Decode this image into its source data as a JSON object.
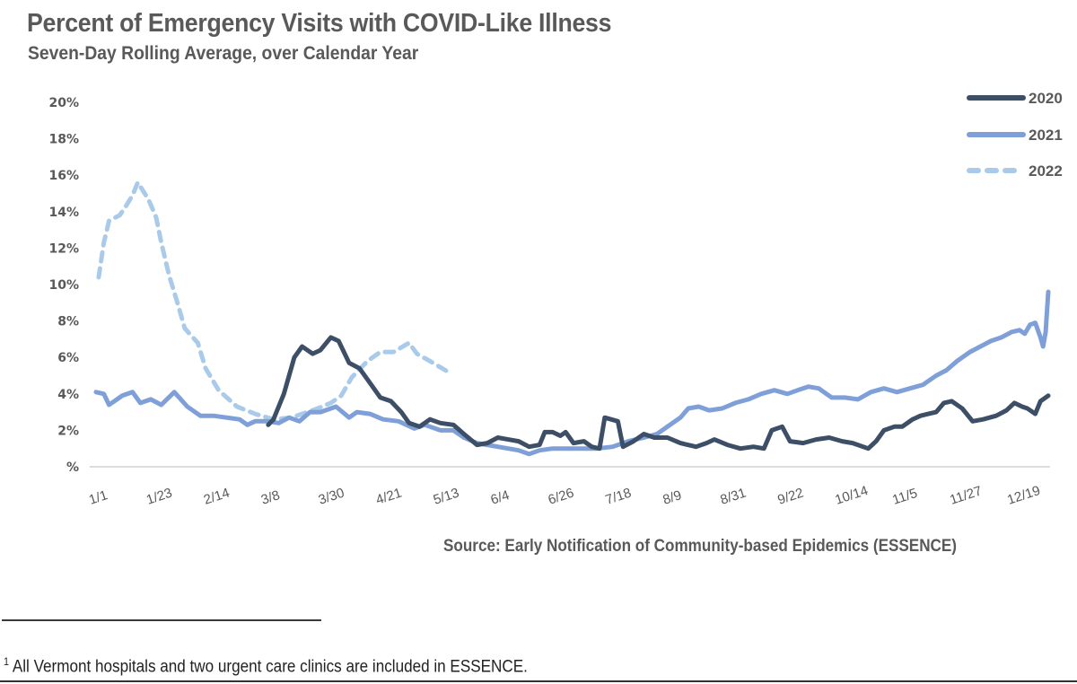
{
  "chart_data": {
    "type": "line",
    "title": "Percent of Emergency Visits with COVID-Like Illness",
    "subtitle": "Seven-Day Rolling Average, over Calendar Year",
    "xlabel": "",
    "ylabel": "",
    "x_unit": "day of year",
    "xlim": [
      0,
      365
    ],
    "ylim": [
      0,
      20
    ],
    "grid": false,
    "legend_position": "top-right",
    "y_ticks": [
      {
        "value": 20,
        "label": "20%"
      },
      {
        "value": 18,
        "label": "18%"
      },
      {
        "value": 16,
        "label": "16%"
      },
      {
        "value": 14,
        "label": "14%"
      },
      {
        "value": 12,
        "label": "12%"
      },
      {
        "value": 10,
        "label": "10%"
      },
      {
        "value": 8,
        "label": "8%"
      },
      {
        "value": 6,
        "label": "6%"
      },
      {
        "value": 4,
        "label": "4%"
      },
      {
        "value": 2,
        "label": "2%"
      },
      {
        "value": 0,
        "label": "%"
      }
    ],
    "x_ticks": [
      {
        "day": 0,
        "label": "1/1"
      },
      {
        "day": 22,
        "label": "1/23"
      },
      {
        "day": 44,
        "label": "2/14"
      },
      {
        "day": 66,
        "label": "3/8"
      },
      {
        "day": 88,
        "label": "3/30"
      },
      {
        "day": 110,
        "label": "4/21"
      },
      {
        "day": 132,
        "label": "5/13"
      },
      {
        "day": 154,
        "label": "6/4"
      },
      {
        "day": 176,
        "label": "6/26"
      },
      {
        "day": 198,
        "label": "7/18"
      },
      {
        "day": 220,
        "label": "8/9"
      },
      {
        "day": 242,
        "label": "8/31"
      },
      {
        "day": 264,
        "label": "9/22"
      },
      {
        "day": 286,
        "label": "10/14"
      },
      {
        "day": 308,
        "label": "11/5"
      },
      {
        "day": 330,
        "label": "11/27"
      },
      {
        "day": 352,
        "label": "12/19"
      }
    ],
    "series": [
      {
        "name": "2020",
        "color": "#3d4f66",
        "style": "solid-thick",
        "points": [
          [
            66,
            2.3
          ],
          [
            68,
            2.6
          ],
          [
            72,
            4.0
          ],
          [
            76,
            6.0
          ],
          [
            79,
            6.6
          ],
          [
            83,
            6.2
          ],
          [
            86,
            6.4
          ],
          [
            90,
            7.1
          ],
          [
            93,
            6.9
          ],
          [
            97,
            5.7
          ],
          [
            101,
            5.4
          ],
          [
            105,
            4.6
          ],
          [
            109,
            3.8
          ],
          [
            113,
            3.6
          ],
          [
            117,
            3.0
          ],
          [
            120,
            2.4
          ],
          [
            124,
            2.2
          ],
          [
            128,
            2.6
          ],
          [
            132,
            2.4
          ],
          [
            137,
            2.3
          ],
          [
            141,
            1.8
          ],
          [
            146,
            1.2
          ],
          [
            150,
            1.3
          ],
          [
            154,
            1.6
          ],
          [
            158,
            1.5
          ],
          [
            162,
            1.4
          ],
          [
            166,
            1.1
          ],
          [
            170,
            1.2
          ],
          [
            172,
            1.9
          ],
          [
            175,
            1.9
          ],
          [
            178,
            1.7
          ],
          [
            180,
            1.9
          ],
          [
            183,
            1.3
          ],
          [
            187,
            1.4
          ],
          [
            190,
            1.1
          ],
          [
            193,
            1.0
          ],
          [
            195,
            2.7
          ],
          [
            200,
            2.5
          ],
          [
            202,
            1.1
          ],
          [
            206,
            1.4
          ],
          [
            210,
            1.8
          ],
          [
            214,
            1.6
          ],
          [
            219,
            1.6
          ],
          [
            224,
            1.3
          ],
          [
            230,
            1.1
          ],
          [
            234,
            1.3
          ],
          [
            237,
            1.5
          ],
          [
            242,
            1.2
          ],
          [
            247,
            1.0
          ],
          [
            252,
            1.1
          ],
          [
            256,
            1.0
          ],
          [
            259,
            2.0
          ],
          [
            263,
            2.2
          ],
          [
            266,
            1.4
          ],
          [
            271,
            1.3
          ],
          [
            276,
            1.5
          ],
          [
            281,
            1.6
          ],
          [
            286,
            1.4
          ],
          [
            290,
            1.3
          ],
          [
            296,
            1.0
          ],
          [
            299,
            1.4
          ],
          [
            302,
            2.0
          ],
          [
            306,
            2.2
          ],
          [
            309,
            2.2
          ],
          [
            313,
            2.6
          ],
          [
            316,
            2.8
          ],
          [
            319,
            2.9
          ],
          [
            322,
            3.0
          ],
          [
            325,
            3.5
          ],
          [
            328,
            3.6
          ],
          [
            332,
            3.2
          ],
          [
            336,
            2.5
          ],
          [
            340,
            2.6
          ],
          [
            345,
            2.8
          ],
          [
            349,
            3.1
          ],
          [
            352,
            3.5
          ],
          [
            355,
            3.3
          ],
          [
            357,
            3.2
          ],
          [
            360,
            2.9
          ],
          [
            362,
            3.6
          ],
          [
            365,
            3.9
          ]
        ]
      },
      {
        "name": "2021",
        "color": "#7f9fd8",
        "style": "solid",
        "points": [
          [
            0,
            4.1
          ],
          [
            3,
            4.0
          ],
          [
            5,
            3.4
          ],
          [
            8,
            3.7
          ],
          [
            10,
            3.9
          ],
          [
            14,
            4.1
          ],
          [
            17,
            3.5
          ],
          [
            21,
            3.7
          ],
          [
            25,
            3.4
          ],
          [
            30,
            4.1
          ],
          [
            35,
            3.3
          ],
          [
            40,
            2.8
          ],
          [
            45,
            2.8
          ],
          [
            50,
            2.7
          ],
          [
            55,
            2.6
          ],
          [
            58,
            2.3
          ],
          [
            61,
            2.5
          ],
          [
            66,
            2.5
          ],
          [
            70,
            2.4
          ],
          [
            74,
            2.7
          ],
          [
            78,
            2.5
          ],
          [
            82,
            3.0
          ],
          [
            86,
            3.0
          ],
          [
            92,
            3.3
          ],
          [
            97,
            2.7
          ],
          [
            100,
            3.0
          ],
          [
            105,
            2.9
          ],
          [
            110,
            2.6
          ],
          [
            116,
            2.5
          ],
          [
            122,
            2.1
          ],
          [
            126,
            2.3
          ],
          [
            132,
            2.0
          ],
          [
            137,
            2.0
          ],
          [
            141,
            1.6
          ],
          [
            146,
            1.3
          ],
          [
            150,
            1.2
          ],
          [
            154,
            1.1
          ],
          [
            158,
            1.0
          ],
          [
            162,
            0.9
          ],
          [
            166,
            0.7
          ],
          [
            170,
            0.9
          ],
          [
            175,
            1.0
          ],
          [
            180,
            1.0
          ],
          [
            186,
            1.0
          ],
          [
            192,
            1.0
          ],
          [
            198,
            1.1
          ],
          [
            204,
            1.4
          ],
          [
            210,
            1.6
          ],
          [
            215,
            1.8
          ],
          [
            219,
            2.2
          ],
          [
            224,
            2.7
          ],
          [
            227,
            3.2
          ],
          [
            231,
            3.3
          ],
          [
            235,
            3.1
          ],
          [
            240,
            3.2
          ],
          [
            245,
            3.5
          ],
          [
            250,
            3.7
          ],
          [
            255,
            4.0
          ],
          [
            260,
            4.2
          ],
          [
            265,
            4.0
          ],
          [
            269,
            4.2
          ],
          [
            273,
            4.4
          ],
          [
            277,
            4.3
          ],
          [
            282,
            3.8
          ],
          [
            287,
            3.8
          ],
          [
            292,
            3.7
          ],
          [
            297,
            4.1
          ],
          [
            302,
            4.3
          ],
          [
            307,
            4.1
          ],
          [
            312,
            4.3
          ],
          [
            317,
            4.5
          ],
          [
            322,
            5.0
          ],
          [
            326,
            5.3
          ],
          [
            330,
            5.8
          ],
          [
            335,
            6.3
          ],
          [
            339,
            6.6
          ],
          [
            343,
            6.9
          ],
          [
            347,
            7.1
          ],
          [
            351,
            7.4
          ],
          [
            354,
            7.5
          ],
          [
            356,
            7.3
          ],
          [
            358,
            7.8
          ],
          [
            360,
            7.9
          ],
          [
            362,
            7.1
          ],
          [
            363,
            6.6
          ],
          [
            364,
            7.4
          ],
          [
            364.5,
            8.5
          ],
          [
            365,
            9.6
          ]
        ]
      },
      {
        "name": "2022",
        "color": "#a9cbe9",
        "style": "dashed",
        "points": [
          [
            1,
            10.4
          ],
          [
            3,
            12.3
          ],
          [
            5,
            13.5
          ],
          [
            9,
            13.8
          ],
          [
            11,
            14.2
          ],
          [
            14,
            14.9
          ],
          [
            16,
            15.6
          ],
          [
            20,
            14.7
          ],
          [
            23,
            13.7
          ],
          [
            25,
            12.3
          ],
          [
            28,
            10.5
          ],
          [
            31,
            9.1
          ],
          [
            34,
            7.6
          ],
          [
            39,
            6.8
          ],
          [
            42,
            5.4
          ],
          [
            47,
            4.2
          ],
          [
            54,
            3.3
          ],
          [
            61,
            2.9
          ],
          [
            68,
            2.6
          ],
          [
            75,
            2.7
          ],
          [
            85,
            3.2
          ],
          [
            90,
            3.5
          ],
          [
            94,
            3.9
          ],
          [
            98,
            4.9
          ],
          [
            104,
            5.8
          ],
          [
            109,
            6.3
          ],
          [
            114,
            6.3
          ],
          [
            120,
            6.8
          ],
          [
            123,
            6.2
          ],
          [
            128,
            5.8
          ],
          [
            135,
            5.2
          ]
        ]
      }
    ]
  },
  "legend": [
    {
      "label": "2020"
    },
    {
      "label": "2021"
    },
    {
      "label": "2022"
    }
  ],
  "source_note": "Source: Early Notification of Community-based Epidemics (ESSENCE)",
  "footnote": {
    "marker": "1",
    "text": " All Vermont hospitals and two urgent care clinics are included in ESSENCE."
  }
}
